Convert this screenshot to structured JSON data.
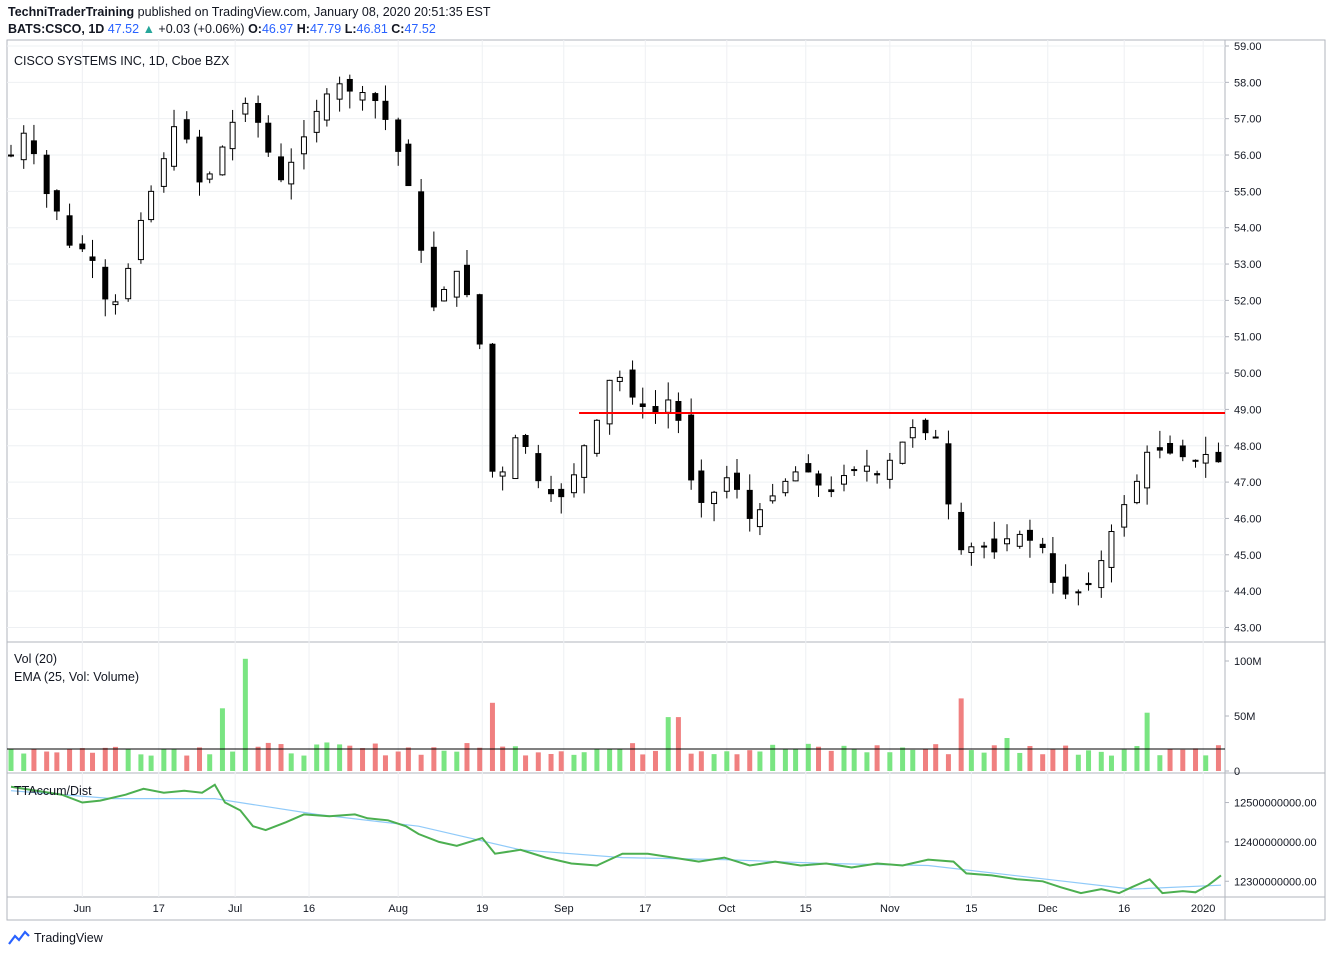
{
  "header": {
    "publisher": "TechniTraderTraining",
    "published_text": "published on TradingView.com, January 08, 2020 20:51:35 EST",
    "symbol": "BATS:CSCO, 1D",
    "last": "47.52",
    "change_arrow": "▲",
    "change": "+0.03 (+0.06%)",
    "o_label": "O:",
    "o": "46.97",
    "h_label": "H:",
    "h": "47.79",
    "l_label": "L:",
    "l": "46.81",
    "c_label": "C:",
    "c": "47.52"
  },
  "price_pane": {
    "title": "CISCO SYSTEMS INC, 1D, Cboe BZX"
  },
  "volume_pane": {
    "title1": "Vol (20)",
    "title2": "EMA (25, Vol: Volume)"
  },
  "accum_pane": {
    "title": "TTAccum/Dist"
  },
  "footer": {
    "brand": "TradingView",
    "logo_icon": "tradingview-logo-icon"
  },
  "colors": {
    "up_volume": "#7ae582",
    "down_volume": "#f08080",
    "resistance": "#ff0000",
    "accum": "#4caf50",
    "accum_avg": "#90caf9"
  },
  "chart_data": [
    {
      "type": "candlestick",
      "title": "CISCO SYSTEMS INC, 1D, Cboe BZX",
      "x_ticks": [
        "Jun",
        "17",
        "Jul",
        "16",
        "Aug",
        "19",
        "Sep",
        "17",
        "Oct",
        "15",
        "Nov",
        "15",
        "Dec",
        "16",
        "2020"
      ],
      "y_ticks": [
        "59.00",
        "58.00",
        "57.00",
        "56.00",
        "55.00",
        "54.00",
        "53.00",
        "52.00",
        "51.00",
        "50.00",
        "49.00",
        "48.00",
        "47.00",
        "46.00",
        "45.00",
        "44.00",
        "43.00"
      ],
      "ylim": [
        42.6,
        59.0
      ],
      "resistance_level": 48.9,
      "close_path": [
        [
          0,
          56.0
        ],
        [
          5,
          56.6
        ],
        [
          10,
          55.9
        ],
        [
          15,
          54.7
        ],
        [
          20,
          54.3
        ],
        [
          25,
          53.0
        ],
        [
          30,
          53.7
        ],
        [
          35,
          52.2
        ],
        [
          40,
          51.8
        ],
        [
          45,
          52.6
        ],
        [
          50,
          54.0
        ],
        [
          55,
          55.0
        ],
        [
          60,
          55.9
        ],
        [
          65,
          57.0
        ],
        [
          70,
          56.3
        ],
        [
          75,
          55.0
        ],
        [
          80,
          55.8
        ],
        [
          85,
          56.5
        ],
        [
          90,
          57.5
        ],
        [
          95,
          57.3
        ],
        [
          100,
          56.3
        ],
        [
          105,
          55.2
        ],
        [
          110,
          55.8
        ],
        [
          115,
          56.5
        ],
        [
          120,
          57.2
        ],
        [
          125,
          57.8
        ],
        [
          130,
          58.0
        ],
        [
          135,
          57.6
        ],
        [
          140,
          57.8
        ],
        [
          145,
          57.3
        ],
        [
          150,
          56.5
        ],
        [
          155,
          55.5
        ],
        [
          160,
          53.8
        ],
        [
          165,
          51.7
        ],
        [
          170,
          52.3
        ],
        [
          175,
          52.8
        ],
        [
          180,
          52.0
        ],
        [
          185,
          50.5
        ],
        [
          190,
          46.5
        ],
        [
          195,
          47.8
        ],
        [
          200,
          48.5
        ],
        [
          205,
          47.2
        ],
        [
          210,
          46.8
        ],
        [
          215,
          46.5
        ],
        [
          220,
          47.0
        ],
        [
          225,
          48.0
        ],
        [
          230,
          48.7
        ],
        [
          235,
          49.8
        ],
        [
          240,
          49.9
        ],
        [
          245,
          49.2
        ],
        [
          250,
          49.0
        ],
        [
          255,
          48.9
        ],
        [
          260,
          49.5
        ],
        [
          265,
          47.5
        ],
        [
          270,
          46.4
        ],
        [
          275,
          46.6
        ],
        [
          280,
          47.2
        ],
        [
          285,
          46.8
        ],
        [
          290,
          46.0
        ],
        [
          295,
          46.3
        ],
        [
          300,
          46.7
        ],
        [
          305,
          47.1
        ],
        [
          310,
          47.4
        ],
        [
          315,
          47.2
        ],
        [
          320,
          46.5
        ],
        [
          325,
          47.1
        ],
        [
          330,
          47.3
        ],
        [
          335,
          47.5
        ],
        [
          340,
          47.2
        ],
        [
          345,
          47.6
        ],
        [
          350,
          48.1
        ],
        [
          355,
          48.6
        ],
        [
          360,
          48.3
        ],
        [
          365,
          48.2
        ],
        [
          370,
          45.2
        ],
        [
          375,
          45.1
        ],
        [
          380,
          45.4
        ],
        [
          385,
          45.0
        ],
        [
          390,
          45.4
        ],
        [
          395,
          45.6
        ],
        [
          400,
          45.4
        ],
        [
          405,
          45.2
        ],
        [
          410,
          44.0
        ],
        [
          415,
          43.9
        ],
        [
          420,
          44.0
        ],
        [
          425,
          44.3
        ],
        [
          430,
          45.2
        ],
        [
          435,
          46.3
        ],
        [
          440,
          46.5
        ],
        [
          445,
          47.8
        ],
        [
          450,
          47.9
        ],
        [
          455,
          47.8
        ],
        [
          460,
          47.7
        ],
        [
          465,
          47.6
        ],
        [
          470,
          47.8
        ],
        [
          475,
          47.5
        ]
      ]
    },
    {
      "type": "bar",
      "title": "Vol (20)",
      "series": [
        {
          "name": "EMA (25, Vol: Volume)",
          "value_approx": 20
        }
      ],
      "y_ticks": [
        "100M",
        "50M",
        "0"
      ],
      "ylim": [
        0,
        100
      ],
      "spikes": [
        {
          "x": 92,
          "value": 102
        },
        {
          "x": 81,
          "value": 57
        },
        {
          "x": 189,
          "value": 62
        },
        {
          "x": 260,
          "value": 49
        },
        {
          "x": 372,
          "value": 66
        },
        {
          "x": 447,
          "value": 53
        },
        {
          "x": 393,
          "value": 30
        }
      ],
      "baseline_value_approx": 20
    },
    {
      "type": "line",
      "title": "TTAccum/Dist",
      "y_ticks": [
        "12500000000.00",
        "12400000000.00",
        "12300000000.00"
      ],
      "ylim": [
        12260000000,
        12570000000
      ],
      "path": [
        [
          0,
          12540
        ],
        [
          10,
          12530
        ],
        [
          20,
          12520
        ],
        [
          28,
          12500
        ],
        [
          35,
          12505
        ],
        [
          45,
          12520
        ],
        [
          52,
          12535
        ],
        [
          60,
          12525
        ],
        [
          68,
          12530
        ],
        [
          75,
          12525
        ],
        [
          80,
          12545
        ],
        [
          84,
          12500
        ],
        [
          90,
          12480
        ],
        [
          95,
          12440
        ],
        [
          100,
          12430
        ],
        [
          108,
          12450
        ],
        [
          115,
          12470
        ],
        [
          125,
          12465
        ],
        [
          135,
          12470
        ],
        [
          140,
          12460
        ],
        [
          148,
          12455
        ],
        [
          155,
          12440
        ],
        [
          160,
          12420
        ],
        [
          168,
          12400
        ],
        [
          175,
          12390
        ],
        [
          185,
          12410
        ],
        [
          190,
          12370
        ],
        [
          200,
          12380
        ],
        [
          210,
          12360
        ],
        [
          220,
          12345
        ],
        [
          230,
          12340
        ],
        [
          240,
          12370
        ],
        [
          250,
          12370
        ],
        [
          260,
          12360
        ],
        [
          270,
          12350
        ],
        [
          280,
          12360
        ],
        [
          290,
          12340
        ],
        [
          300,
          12350
        ],
        [
          310,
          12340
        ],
        [
          320,
          12345
        ],
        [
          330,
          12335
        ],
        [
          340,
          12345
        ],
        [
          350,
          12340
        ],
        [
          360,
          12355
        ],
        [
          370,
          12350
        ],
        [
          375,
          12320
        ],
        [
          385,
          12315
        ],
        [
          395,
          12305
        ],
        [
          405,
          12300
        ],
        [
          412,
          12285
        ],
        [
          420,
          12270
        ],
        [
          428,
          12280
        ],
        [
          435,
          12270
        ],
        [
          440,
          12285
        ],
        [
          447,
          12305
        ],
        [
          452,
          12270
        ],
        [
          460,
          12275
        ],
        [
          465,
          12272
        ],
        [
          470,
          12290
        ],
        [
          475,
          12315
        ]
      ],
      "average_path": [
        [
          0,
          12530
        ],
        [
          40,
          12510
        ],
        [
          80,
          12510
        ],
        [
          120,
          12470
        ],
        [
          160,
          12440
        ],
        [
          200,
          12380
        ],
        [
          240,
          12360
        ],
        [
          280,
          12355
        ],
        [
          320,
          12345
        ],
        [
          360,
          12340
        ],
        [
          400,
          12310
        ],
        [
          440,
          12280
        ],
        [
          475,
          12290
        ]
      ]
    }
  ]
}
